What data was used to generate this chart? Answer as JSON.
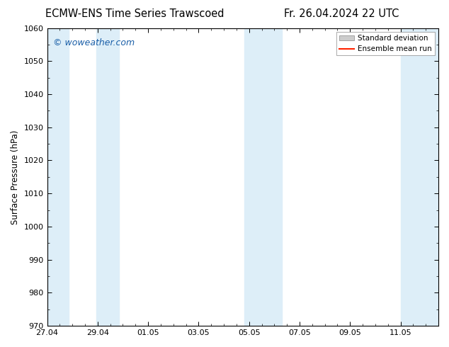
{
  "title_left": "ECMW-ENS Time Series Trawscoed",
  "title_right": "Fr. 26.04.2024 22 UTC",
  "ylabel": "Surface Pressure (hPa)",
  "ylim": [
    970,
    1060
  ],
  "yticks": [
    970,
    980,
    990,
    1000,
    1010,
    1020,
    1030,
    1040,
    1050,
    1060
  ],
  "xlim": [
    0,
    15.5
  ],
  "xtick_labels": [
    "27.04",
    "29.04",
    "01.05",
    "03.05",
    "05.05",
    "07.05",
    "09.05",
    "11.05"
  ],
  "xtick_positions": [
    0,
    2,
    4,
    6,
    8,
    10,
    12,
    14
  ],
  "shaded_bands": [
    {
      "x_start": 0.0,
      "x_end": 0.85,
      "color": "#ddeef8"
    },
    {
      "x_start": 1.95,
      "x_end": 2.85,
      "color": "#ddeef8"
    },
    {
      "x_start": 7.8,
      "x_end": 8.85,
      "color": "#ddeef8"
    },
    {
      "x_start": 8.85,
      "x_end": 9.3,
      "color": "#ddeef8"
    },
    {
      "x_start": 14.0,
      "x_end": 14.85,
      "color": "#ddeef8"
    },
    {
      "x_start": 14.85,
      "x_end": 15.5,
      "color": "#ddeef8"
    }
  ],
  "watermark": "© woweather.com",
  "watermark_color": "#1a5fa8",
  "legend_std_color": "#cccccc",
  "legend_mean_color": "#ff2200",
  "bg_color": "#ffffff",
  "plot_bg_color": "#ffffff",
  "title_fontsize": 10.5,
  "axis_label_fontsize": 8.5,
  "tick_fontsize": 8,
  "watermark_fontsize": 9
}
